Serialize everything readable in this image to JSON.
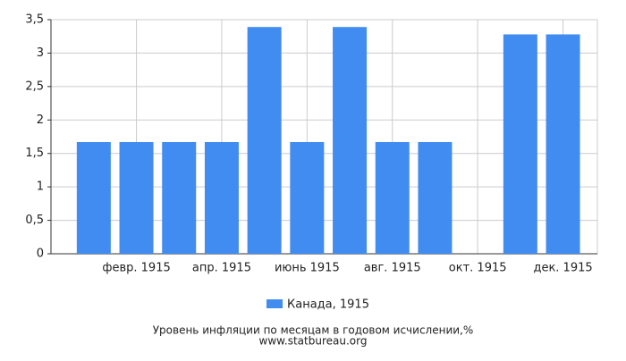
{
  "chart_data": {
    "type": "bar",
    "title": "Уровень инфляции по месяцам в годовом исчислении,%",
    "source": "www.statbureau.org",
    "categories": [
      null,
      "февр. 1915",
      null,
      "апр. 1915",
      null,
      "июнь 1915",
      null,
      "авг. 1915",
      null,
      "окт. 1915",
      null,
      "дек. 1915"
    ],
    "series": [
      {
        "name": "Канада, 1915",
        "color": "#418cf0",
        "values": [
          1.67,
          1.67,
          1.67,
          1.67,
          3.39,
          1.67,
          3.39,
          1.67,
          1.67,
          0,
          3.28,
          3.28
        ]
      }
    ],
    "ylim": [
      0,
      3.5
    ],
    "yticks": [
      0,
      {
        "value": 0.5,
        "label": "0,5"
      },
      1,
      {
        "value": 1.5,
        "label": "1,5"
      },
      2,
      {
        "value": 2.5,
        "label": "2,5"
      },
      3,
      {
        "value": 3.5,
        "label": "3,5"
      }
    ],
    "grid": true
  }
}
